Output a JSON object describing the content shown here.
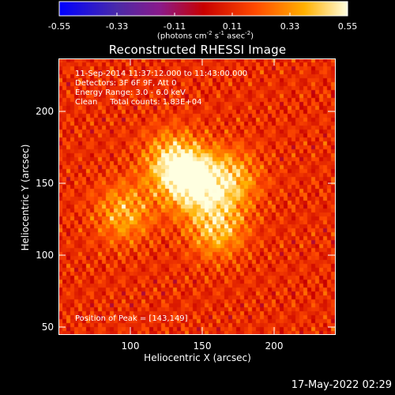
{
  "colorbar": {
    "ticks": [
      "-0.55",
      "-0.33",
      "-0.11",
      "0.11",
      "0.33",
      "0.55"
    ],
    "units_prefix": "(photons cm",
    "units_exp1": "-2",
    "units_mid": " s",
    "units_exp2": "-1",
    "units_mid2": " asec",
    "units_exp3": "-2",
    "units_suffix": ")"
  },
  "title": "Reconstructed RHESSI Image",
  "annotations": {
    "time_range": "11-Sep-2014 11:37:12.000 to 11:43:00.000",
    "detectors": "Detectors: 3F 6F 9F, Att 0",
    "energy": "Energy Range: 3.0 - 6.0 keV",
    "clean": "Clean     Total counts: 1.83E+04",
    "peak": "Position of Peak = [143,149]"
  },
  "axes": {
    "xlabel": "Heliocentric X (arcsec)",
    "ylabel": "Heliocentric Y (arcsec)",
    "xticks": [
      "100",
      "150",
      "200"
    ],
    "yticks": [
      "50",
      "100",
      "150",
      "200"
    ],
    "xlim": [
      50,
      245
    ],
    "ylim": [
      45,
      230
    ]
  },
  "image": {
    "colormap": "red-temperature",
    "sources": [
      {
        "x": 143,
        "y": 149,
        "peak": 0.55
      },
      {
        "x": 128,
        "y": 162,
        "peak": 0.42
      },
      {
        "x": 160,
        "y": 118,
        "peak": 0.4
      },
      {
        "x": 170,
        "y": 150,
        "peak": 0.38
      },
      {
        "x": 95,
        "y": 128,
        "peak": 0.36
      }
    ]
  },
  "timestamp": "17-May-2022 02:29"
}
